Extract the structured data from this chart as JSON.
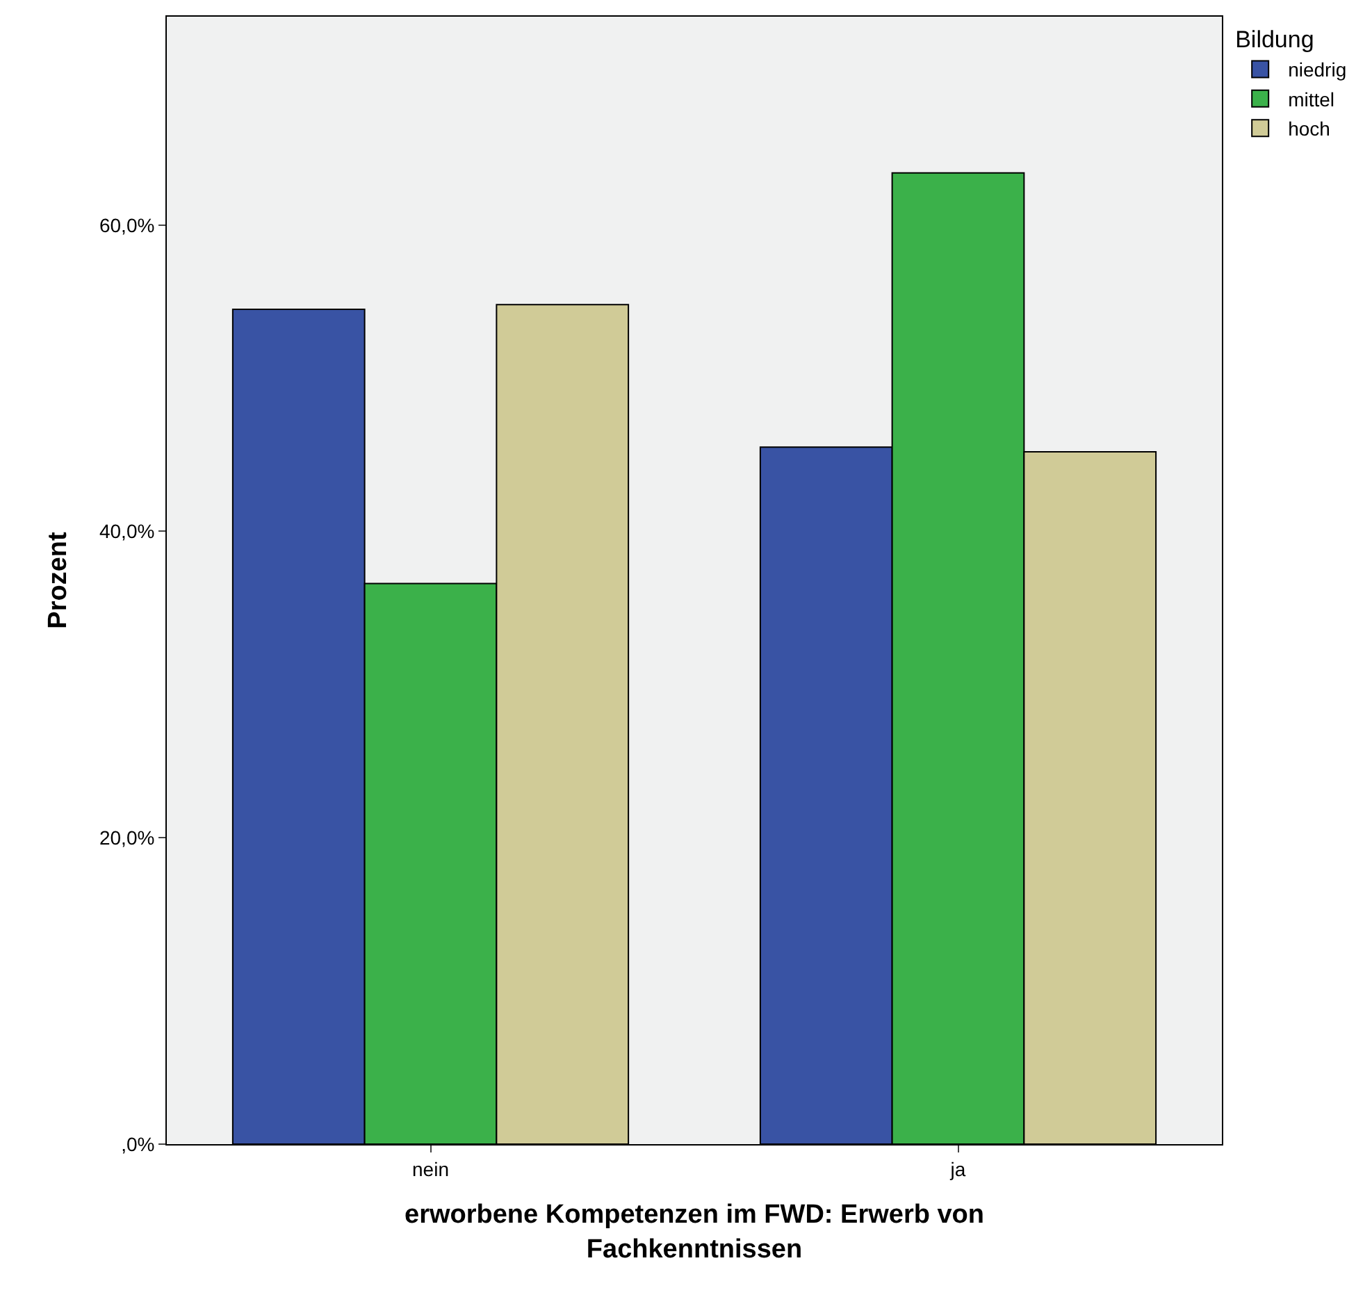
{
  "chart_data": {
    "type": "bar",
    "xlabel": "erworbene Kompetenzen im FWD: Erwerb von\nFachkenntnissen",
    "ylabel": "Prozent",
    "legend_title": "Bildung",
    "categories": [
      "nein",
      "ja"
    ],
    "series": [
      {
        "name": "niedrig",
        "color": "#3953a4",
        "values": [
          54.5,
          45.5
        ]
      },
      {
        "name": "mittel",
        "color": "#3bb14a",
        "values": [
          36.6,
          63.4
        ]
      },
      {
        "name": "hoch",
        "color": "#d0cb97",
        "values": [
          54.8,
          45.2
        ]
      }
    ],
    "ylim": [
      0,
      73.6
    ],
    "yticks": [
      {
        "value": 0,
        "label": ",0%"
      },
      {
        "value": 20,
        "label": "20,0%"
      },
      {
        "value": 40,
        "label": "40,0%"
      },
      {
        "value": 60,
        "label": "60,0%"
      }
    ],
    "grid": false,
    "legend": "top right"
  }
}
